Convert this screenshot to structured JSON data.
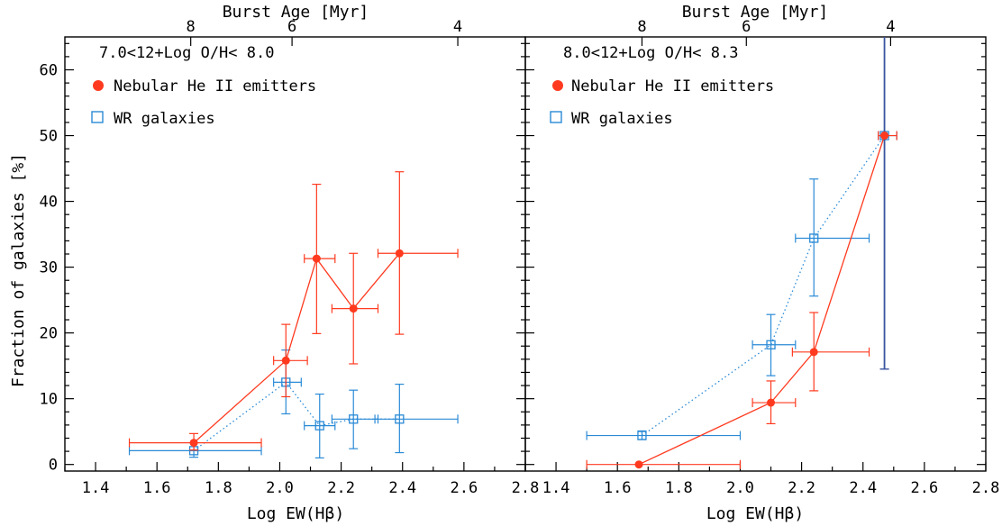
{
  "figure": {
    "ylabel": "Fraction of galaxies [%]",
    "top_axis_label": "Burst Age [Myr]",
    "top_ticks": [
      {
        "age": "8",
        "logew": 1.71
      },
      {
        "age": "6",
        "logew": 2.04
      },
      {
        "age": "4",
        "logew": 2.58
      }
    ],
    "top_ticks_right": [
      {
        "age": "8",
        "logew": 1.68
      },
      {
        "age": "6",
        "logew": 2.02
      },
      {
        "age": "4",
        "logew": 2.49
      }
    ]
  },
  "colors": {
    "nebular": "#ff3a1f",
    "wr": "#2a8ad6",
    "wr_dark": "#3a55a0"
  },
  "chart_data": [
    {
      "type": "scatter",
      "annotation": "7.0<12+Log O/H< 8.0",
      "xlabel": "Log EW(Hβ)",
      "ylabel": "Fraction of galaxies [%]",
      "top_xlabel": "Burst Age [Myr]",
      "xlim": [
        1.3,
        2.8
      ],
      "ylim": [
        -1,
        65
      ],
      "xticks": [
        "1.4",
        "1.6",
        "1.8",
        "2.0",
        "2.2",
        "2.4",
        "2.6",
        "2.8"
      ],
      "yticks": [
        "0",
        "10",
        "20",
        "30",
        "40",
        "50",
        "60"
      ],
      "legend_position": "top-left",
      "series": [
        {
          "name": "Nebular He II emitters",
          "marker": "filled-circle",
          "line": "solid",
          "points": [
            {
              "x": 1.72,
              "y": 3.3,
              "xerr": [
                1.51,
                1.94
              ],
              "yerr": [
                2.2,
                4.7
              ]
            },
            {
              "x": 2.02,
              "y": 15.8,
              "xerr": [
                1.98,
                2.09
              ],
              "yerr": [
                10.3,
                21.3
              ]
            },
            {
              "x": 2.12,
              "y": 31.3,
              "xerr": [
                2.08,
                2.18
              ],
              "yerr": [
                19.9,
                42.6
              ]
            },
            {
              "x": 2.24,
              "y": 23.7,
              "xerr": [
                2.17,
                2.32
              ],
              "yerr": [
                15.3,
                32.1
              ]
            },
            {
              "x": 2.39,
              "y": 32.1,
              "xerr": [
                2.32,
                2.58
              ],
              "yerr": [
                19.8,
                44.5
              ]
            }
          ]
        },
        {
          "name": "WR galaxies",
          "marker": "open-square",
          "line": "dotted",
          "points": [
            {
              "x": 1.72,
              "y": 2.1,
              "xerr": [
                1.51,
                1.94
              ],
              "yerr": [
                1.1,
                3.3
              ]
            },
            {
              "x": 2.02,
              "y": 12.5,
              "xerr": [
                1.98,
                2.07
              ],
              "yerr": [
                7.7,
                17.4
              ]
            },
            {
              "x": 2.13,
              "y": 5.9,
              "xerr": [
                2.08,
                2.18
              ],
              "yerr": [
                1.0,
                10.7
              ]
            },
            {
              "x": 2.24,
              "y": 6.9,
              "xerr": [
                2.17,
                2.32
              ],
              "yerr": [
                2.4,
                11.3
              ]
            },
            {
              "x": 2.39,
              "y": 6.9,
              "xerr": [
                2.31,
                2.58
              ],
              "yerr": [
                1.8,
                12.2
              ]
            }
          ]
        }
      ]
    },
    {
      "type": "scatter",
      "annotation": "8.0<12+Log O/H< 8.3",
      "xlabel": "Log EW(Hβ)",
      "ylabel": "",
      "top_xlabel": "Burst Age [Myr]",
      "xlim": [
        1.3,
        2.8
      ],
      "ylim": [
        -1,
        65
      ],
      "xticks": [
        "1.4",
        "1.6",
        "1.8",
        "2.0",
        "2.2",
        "2.4",
        "2.6",
        "2.8"
      ],
      "yticks": [],
      "legend_position": "top-left",
      "series": [
        {
          "name": "Nebular He II emitters",
          "marker": "filled-circle",
          "line": "solid",
          "points": [
            {
              "x": 1.67,
              "y": 0.0,
              "xerr": [
                1.5,
                2.0
              ],
              "yerr": [
                0.0,
                0.0
              ]
            },
            {
              "x": 2.1,
              "y": 9.4,
              "xerr": [
                2.04,
                2.18
              ],
              "yerr": [
                6.2,
                12.7
              ]
            },
            {
              "x": 2.24,
              "y": 17.1,
              "xerr": [
                2.17,
                2.42
              ],
              "yerr": [
                11.2,
                23.1
              ]
            },
            {
              "x": 2.47,
              "y": 50.0,
              "xerr": [
                2.45,
                2.51
              ],
              "yerr": [
                14.5,
                65.0
              ]
            }
          ]
        },
        {
          "name": "WR galaxies",
          "marker": "open-square",
          "line": "dotted",
          "points": [
            {
              "x": 1.68,
              "y": 4.4,
              "xerr": [
                1.5,
                2.0
              ],
              "yerr": [
                3.8,
                5.1
              ]
            },
            {
              "x": 2.1,
              "y": 18.2,
              "xerr": [
                2.04,
                2.18
              ],
              "yerr": [
                13.5,
                22.8
              ]
            },
            {
              "x": 2.24,
              "y": 34.4,
              "xerr": [
                2.18,
                2.42
              ],
              "yerr": [
                25.6,
                43.4
              ]
            },
            {
              "x": 2.47,
              "y": 50.0,
              "xerr": [
                2.45,
                2.51
              ],
              "yerr": [
                14.5,
                65.0
              ]
            }
          ]
        }
      ]
    }
  ]
}
